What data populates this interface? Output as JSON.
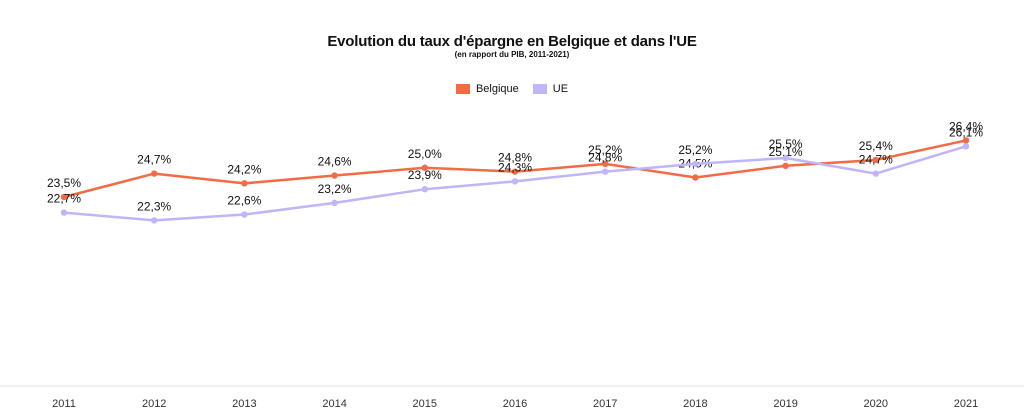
{
  "chart_data": {
    "type": "line",
    "title": "Evolution du taux d'épargne en Belgique et dans l'UE",
    "subtitle": "(en rapport du PIB, 2011-2021)",
    "categories": [
      "2011",
      "2012",
      "2013",
      "2014",
      "2015",
      "2016",
      "2017",
      "2018",
      "2019",
      "2020",
      "2021"
    ],
    "series": [
      {
        "name": "Belgique",
        "color": "#f26b45",
        "values": [
          23.5,
          24.7,
          24.2,
          24.6,
          25.0,
          24.8,
          25.2,
          24.5,
          25.1,
          25.4,
          26.4
        ],
        "labels": [
          "23,5%",
          "24,7%",
          "24,2%",
          "24,6%",
          "25,0%",
          "24,8%",
          "25,2%",
          "24,5%",
          "25,1%",
          "25,4%",
          "26,4%"
        ]
      },
      {
        "name": "UE",
        "color": "#bfb5fb",
        "values": [
          22.7,
          22.3,
          22.6,
          23.2,
          23.9,
          24.3,
          24.8,
          25.2,
          25.5,
          24.7,
          26.1
        ],
        "labels": [
          "22,7%",
          "22,3%",
          "22,6%",
          "23,2%",
          "23,9%",
          "24,3%",
          "24,8%",
          "25,2%",
          "25,5%",
          "24,7%",
          "26,1%"
        ]
      }
    ],
    "xlabel": "",
    "ylabel": "",
    "grid": false,
    "legend": "top-center"
  }
}
